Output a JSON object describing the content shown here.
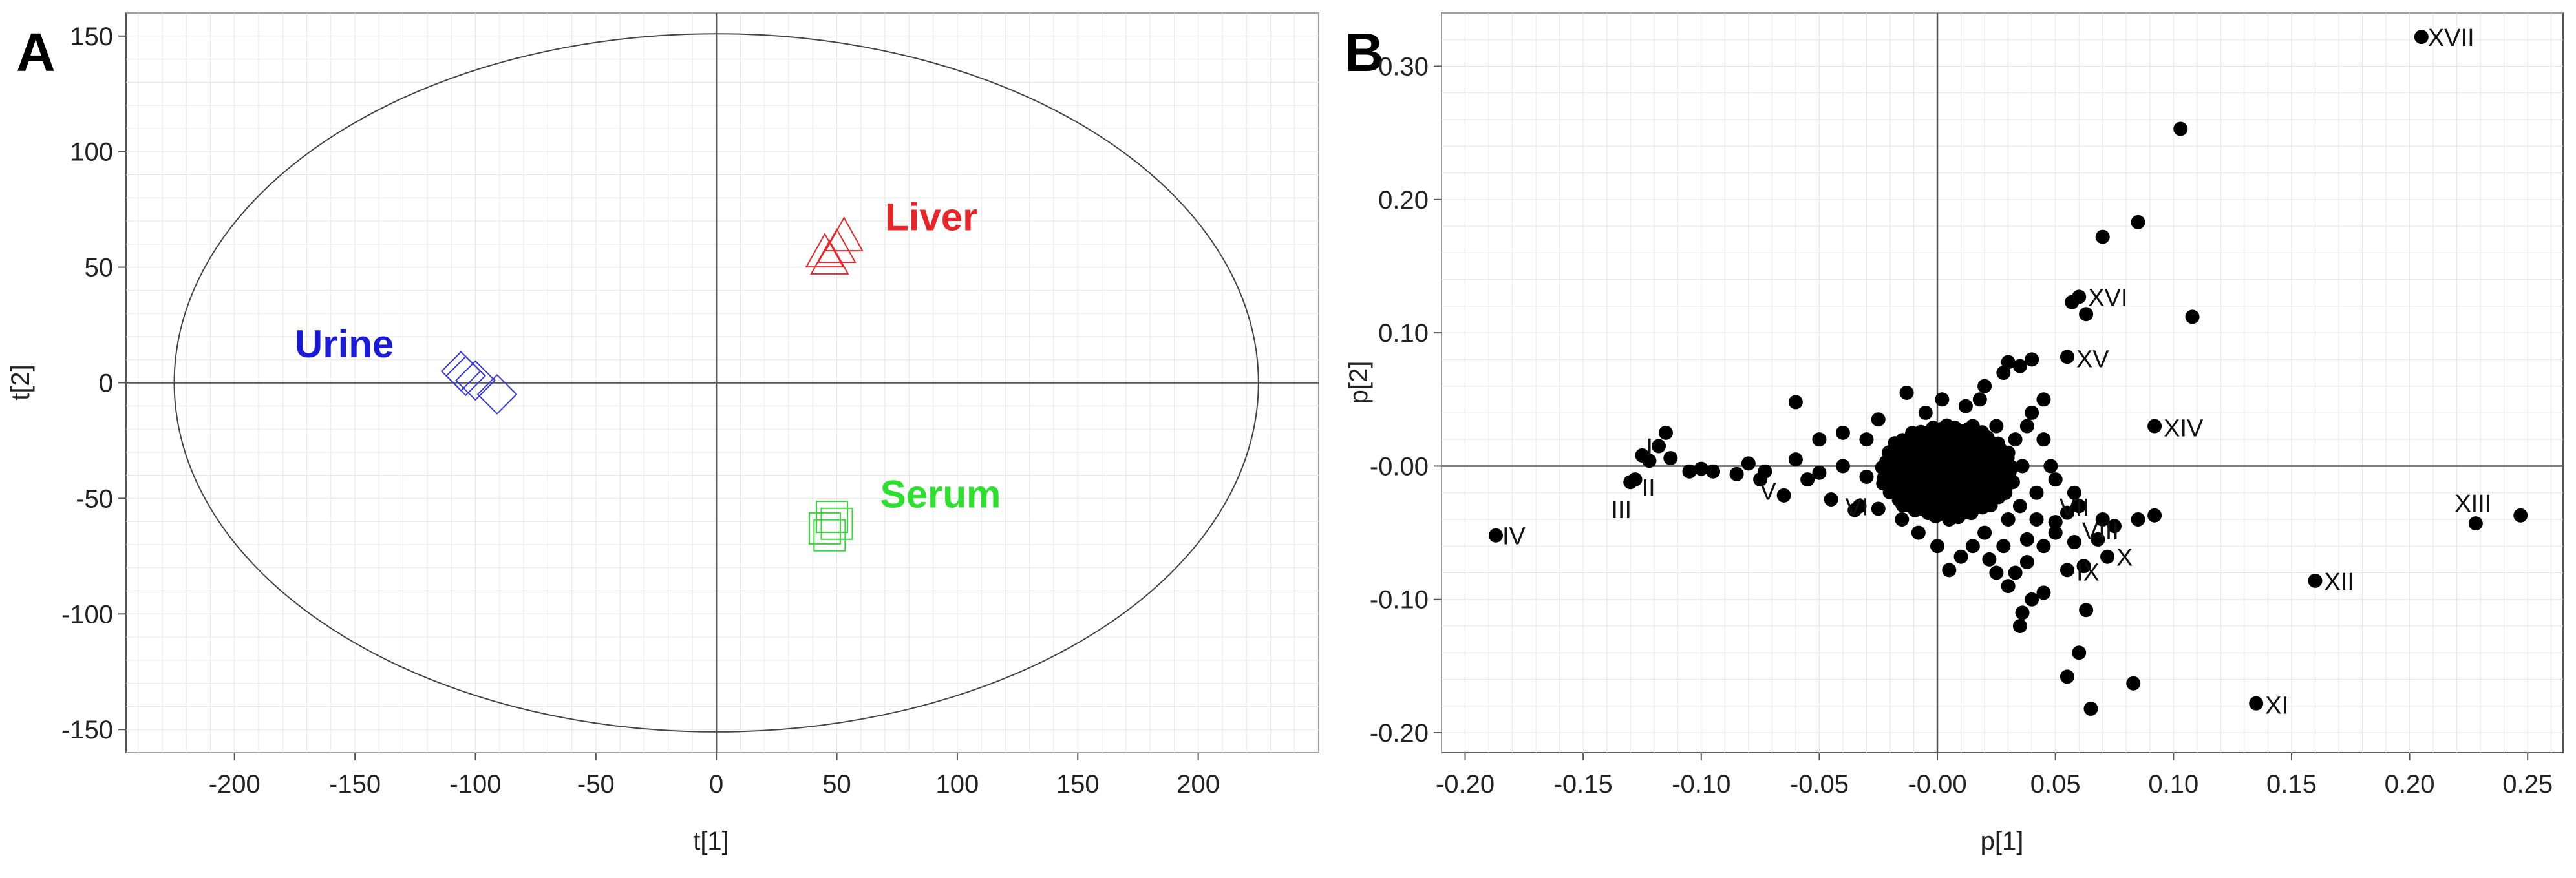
{
  "chart_data": [
    {
      "panel": "A",
      "type": "scatter",
      "xlabel": "t[1]",
      "ylabel": "t[2]",
      "xlim": [
        -245,
        250
      ],
      "ylim": [
        -160,
        160
      ],
      "xticks": [
        "-200",
        "-150",
        "-100",
        "-50",
        "0",
        "50",
        "100",
        "150",
        "200"
      ],
      "yticks": [
        "150",
        "100",
        "50",
        "0",
        "-50",
        "-100",
        "-150"
      ],
      "ellipse": {
        "rx": 225,
        "ry": 151
      },
      "series": [
        {
          "name": "Liver",
          "color": "#e8262a",
          "marker": "triangle",
          "points": [
            [
              50,
              58
            ],
            [
              53,
              63
            ],
            [
              47,
              53
            ],
            [
              45,
              56
            ]
          ]
        },
        {
          "name": "Urine",
          "color": "#3b3bd8",
          "marker": "diamond",
          "points": [
            [
              -104,
              3
            ],
            [
              -100,
              1
            ],
            [
              -91,
              -5
            ],
            [
              -106,
              5
            ]
          ]
        },
        {
          "name": "Serum",
          "color": "#33d633",
          "marker": "square",
          "points": [
            [
              48,
              -58
            ],
            [
              50,
              -61
            ],
            [
              45,
              -63
            ],
            [
              47,
              -66
            ]
          ]
        }
      ],
      "labels": [
        {
          "text": "Liver",
          "x": 70,
          "y": 66,
          "color": "#e8262a"
        },
        {
          "text": "Urine",
          "x": -175,
          "y": 11,
          "color": "#1a1adb"
        },
        {
          "text": "Serum",
          "x": 68,
          "y": -54,
          "color": "#2ee02e"
        }
      ]
    },
    {
      "panel": "B",
      "type": "scatter",
      "xlabel": "p[1]",
      "ylabel": "p[2]",
      "xlim": [
        -0.21,
        0.265
      ],
      "ylim": [
        -0.215,
        0.34
      ],
      "xticks": [
        "-0.20",
        "-0.15",
        "-0.10",
        "-0.05",
        "-0.00",
        "0.05",
        "0.10",
        "0.15",
        "0.20",
        "0.25"
      ],
      "yticks": [
        "0.30",
        "0.20",
        "0.10",
        "-0.00",
        "-0.10",
        "-0.20"
      ],
      "annotated_points": [
        {
          "label": "XVII",
          "x": 0.205,
          "y": 0.322
        },
        {
          "label": "XVI",
          "x": 0.06,
          "y": 0.127
        },
        {
          "label": "XV",
          "x": 0.055,
          "y": 0.082
        },
        {
          "label": "XIV",
          "x": 0.092,
          "y": 0.03
        },
        {
          "label": "XIII",
          "x": 0.228,
          "y": -0.043
        },
        {
          "label": "XII",
          "x": 0.16,
          "y": -0.086
        },
        {
          "label": "XI",
          "x": 0.135,
          "y": -0.178
        },
        {
          "label": "X",
          "x": 0.072,
          "y": -0.068
        },
        {
          "label": "IX",
          "x": 0.055,
          "y": -0.078
        },
        {
          "label": "VIII",
          "x": 0.058,
          "y": -0.057
        },
        {
          "label": "VII",
          "x": 0.05,
          "y": -0.042
        },
        {
          "label": "VI",
          "x": -0.033,
          "y": -0.03
        },
        {
          "label": "V",
          "x": -0.073,
          "y": -0.004
        },
        {
          "label": "IV",
          "x": -0.187,
          "y": -0.052
        },
        {
          "label": "III",
          "x": -0.13,
          "y": -0.012
        },
        {
          "label": "II",
          "x": -0.128,
          "y": -0.01
        },
        {
          "label": "I",
          "x": -0.125,
          "y": 0.008
        }
      ],
      "other_points": [
        [
          0.103,
          0.253
        ],
        [
          0.085,
          0.183
        ],
        [
          0.07,
          0.172
        ],
        [
          0.108,
          0.112
        ],
        [
          0.063,
          0.114
        ],
        [
          0.057,
          0.123
        ],
        [
          0.247,
          -0.037
        ],
        [
          0.092,
          -0.037
        ],
        [
          0.083,
          -0.163
        ],
        [
          0.065,
          -0.182
        ],
        [
          0.055,
          -0.158
        ],
        [
          0.06,
          -0.14
        ],
        [
          0.063,
          -0.108
        ],
        [
          0.035,
          -0.12
        ],
        [
          0.04,
          -0.1
        ],
        [
          0.03,
          -0.09
        ],
        [
          0.075,
          -0.045
        ],
        [
          0.068,
          -0.055
        ],
        [
          0.085,
          -0.04
        ],
        [
          0.045,
          -0.06
        ],
        [
          0.038,
          -0.072
        ],
        [
          0.025,
          -0.08
        ],
        [
          0.05,
          -0.05
        ],
        [
          0.042,
          -0.04
        ],
        [
          -0.013,
          0.055
        ],
        [
          -0.06,
          0.048
        ],
        [
          -0.115,
          0.025
        ],
        [
          -0.118,
          0.015
        ],
        [
          -0.113,
          0.006
        ],
        [
          -0.122,
          0.004
        ],
        [
          -0.095,
          -0.004
        ],
        [
          -0.085,
          -0.006
        ],
        [
          -0.065,
          -0.022
        ],
        [
          -0.045,
          -0.025
        ],
        [
          -0.035,
          -0.033
        ],
        [
          -0.025,
          -0.032
        ],
        [
          -0.015,
          -0.04
        ],
        [
          -0.008,
          -0.05
        ],
        [
          0.0,
          -0.06
        ],
        [
          0.005,
          -0.078
        ],
        [
          0.04,
          0.08
        ],
        [
          0.035,
          0.075
        ],
        [
          0.03,
          0.078
        ],
        [
          0.028,
          0.07
        ],
        [
          0.02,
          0.06
        ],
        [
          0.045,
          0.05
        ],
        [
          0.04,
          0.04
        ],
        [
          0.038,
          0.03
        ],
        [
          0.033,
          0.02
        ],
        [
          0.045,
          0.02
        ],
        [
          0.03,
          0.01
        ],
        [
          0.05,
          -0.01
        ],
        [
          0.042,
          -0.02
        ],
        [
          0.035,
          -0.03
        ],
        [
          0.03,
          -0.04
        ],
        [
          0.02,
          -0.05
        ],
        [
          0.015,
          -0.06
        ],
        [
          0.01,
          -0.068
        ],
        [
          0.012,
          0.045
        ],
        [
          0.002,
          0.05
        ],
        [
          0.018,
          0.05
        ],
        [
          -0.005,
          0.04
        ],
        [
          -0.025,
          0.035
        ],
        [
          -0.04,
          0.025
        ],
        [
          -0.05,
          0.02
        ],
        [
          -0.03,
          0.02
        ],
        [
          -0.055,
          -0.01
        ],
        [
          -0.075,
          -0.01
        ],
        [
          -0.1,
          -0.002
        ],
        [
          -0.105,
          -0.004
        ],
        [
          -0.08,
          0.002
        ],
        [
          0.022,
          -0.07
        ],
        [
          0.028,
          -0.06
        ],
        [
          0.06,
          -0.03
        ],
        [
          0.058,
          -0.02
        ],
        [
          0.048,
          0.0
        ],
        [
          0.036,
          0.0
        ],
        [
          0.025,
          0.03
        ],
        [
          0.015,
          0.03
        ],
        [
          -0.01,
          0.015
        ],
        [
          -0.02,
          0.005
        ],
        [
          -0.04,
          0.0
        ],
        [
          -0.06,
          0.005
        ],
        [
          -0.05,
          -0.005
        ],
        [
          -0.03,
          -0.008
        ],
        [
          0.005,
          -0.04
        ],
        [
          0.01,
          -0.03
        ],
        [
          0.02,
          -0.02
        ],
        [
          0.015,
          0.01
        ],
        [
          0.005,
          0.02
        ],
        [
          -0.005,
          0.0
        ],
        [
          0.0,
          -0.01
        ],
        [
          0.008,
          0.005
        ],
        [
          0.003,
          -0.02
        ],
        [
          -0.012,
          -0.015
        ],
        [
          0.025,
          0.005
        ],
        [
          0.032,
          -0.012
        ],
        [
          0.038,
          -0.055
        ],
        [
          0.033,
          -0.08
        ],
        [
          0.036,
          -0.11
        ],
        [
          0.045,
          -0.095
        ],
        [
          0.062,
          -0.075
        ],
        [
          0.07,
          -0.04
        ],
        [
          0.055,
          -0.035
        ]
      ]
    }
  ]
}
